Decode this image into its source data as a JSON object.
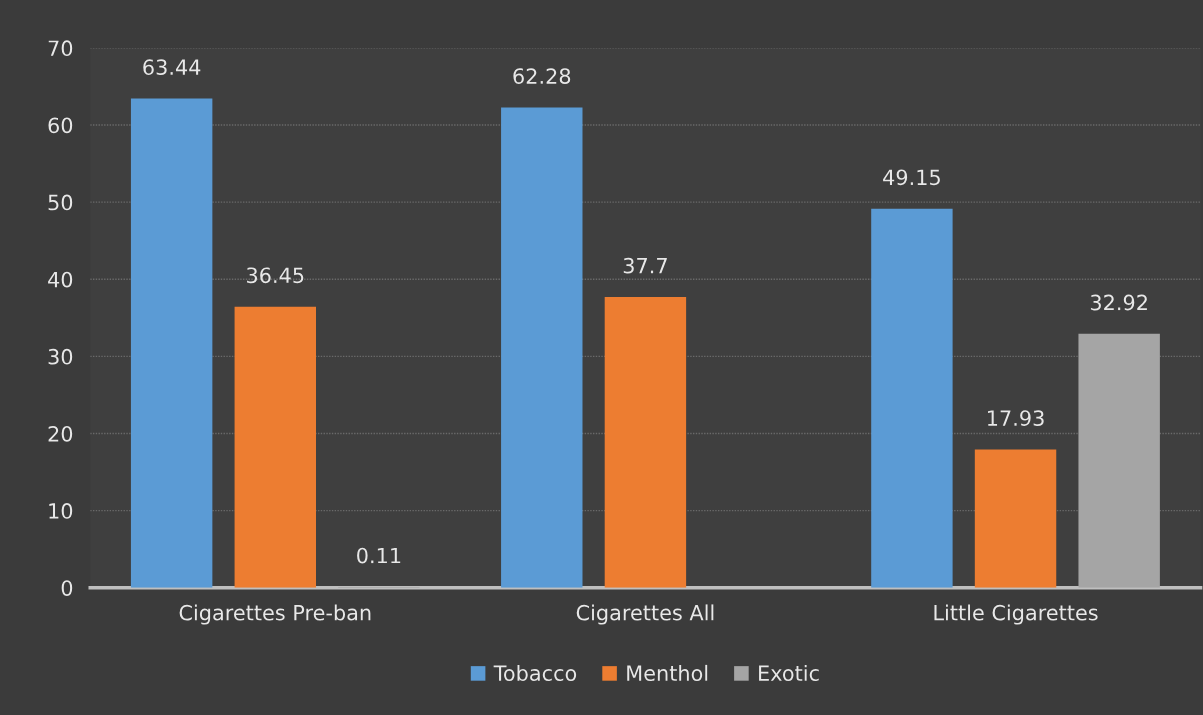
{
  "chart_data": {
    "type": "bar",
    "categories": [
      "Cigarettes Pre-ban",
      "Cigarettes All",
      "Little Cigarettes"
    ],
    "series": [
      {
        "name": "Tobacco",
        "color": "#5b9bd5",
        "values": [
          63.44,
          62.28,
          49.15
        ],
        "value_labels": [
          "63.44",
          "62.28",
          "49.15"
        ]
      },
      {
        "name": "Menthol",
        "color": "#ed7d31",
        "values": [
          36.45,
          37.7,
          17.93
        ],
        "value_labels": [
          "36.45",
          "37.7",
          "17.93"
        ]
      },
      {
        "name": "Exotic",
        "color": "#a5a5a5",
        "values": [
          0.11,
          null,
          32.92
        ],
        "value_labels": [
          "0.11",
          null,
          "32.92"
        ]
      }
    ],
    "ylim": [
      0,
      70
    ],
    "yticks": [
      0,
      10,
      20,
      30,
      40,
      50,
      60,
      70
    ],
    "grid": "y",
    "legend": "bottom"
  }
}
